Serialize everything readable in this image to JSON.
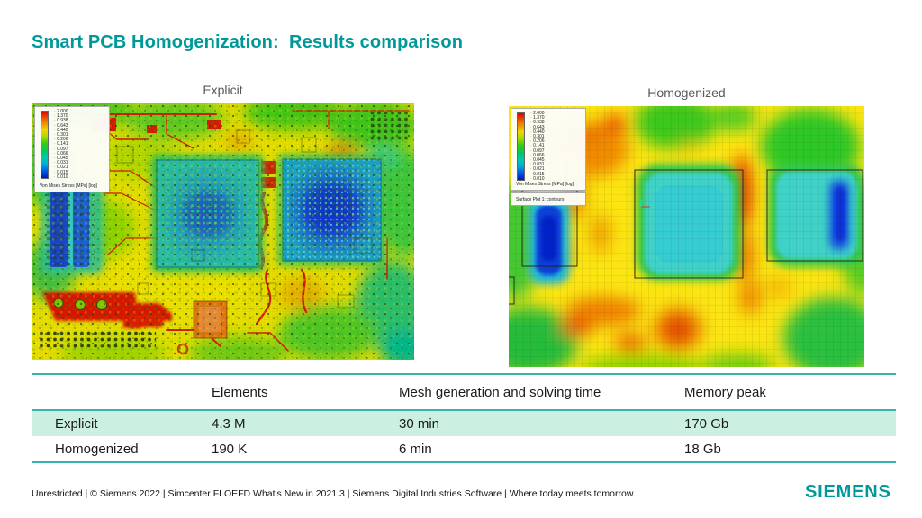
{
  "slide": {
    "title": "Smart PCB Homogenization:  Results comparison",
    "footer": "Unrestricted | © Siemens 2022 | Simcenter FLOEFD What's New in 2021.3 | Siemens Digital Industries Software | Where today meets tomorrow.",
    "logo": "SIEMENS"
  },
  "figures": {
    "legend_values": [
      "2.000",
      "1.370",
      "0.938",
      "0.643",
      "0.440",
      "0.301",
      "0.206",
      "0.141",
      "0.097",
      "0.066",
      "0.045",
      "0.031",
      "0.021",
      "0.015",
      "0.010"
    ],
    "explicit": {
      "label": "Explicit",
      "legend_caption": "Von Mises Stress [MPa] [log]"
    },
    "homogenized": {
      "label": "Homogenized",
      "legend_caption": "Von Mises Stress [MPa] [log]",
      "legend_subcaption": "Surface Plot 1: contours"
    }
  },
  "table": {
    "headers": {
      "rowlabel": "",
      "elements": "Elements",
      "time": "Mesh generation and solving time",
      "memory": "Memory peak"
    },
    "rows": [
      {
        "label": "Explicit",
        "elements": "4.3 M",
        "time": "30 min",
        "memory": "170 Gb"
      },
      {
        "label": "Homogenized",
        "elements": "190 K",
        "time": "6 min",
        "memory": "18 Gb"
      }
    ]
  },
  "colors": {
    "accent_teal": "#009999",
    "table_line": "#35b4ac",
    "row_highlight": "#cbf0e2",
    "figure_label_gray": "#595959"
  }
}
